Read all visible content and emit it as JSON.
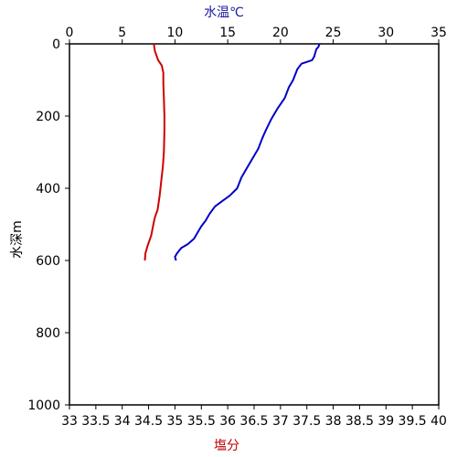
{
  "chart_data": {
    "type": "line",
    "top_axis": {
      "label": "水温℃",
      "ticks": [
        0,
        5,
        10,
        15,
        20,
        25,
        30,
        35
      ],
      "range": [
        0,
        35
      ],
      "label_color": "#1a1aa0"
    },
    "bottom_axis": {
      "label": "塩分",
      "ticks": [
        "33",
        "33.5",
        "34",
        "34.5",
        "35",
        "35.5",
        "36",
        "36.5",
        "37",
        "37.5",
        "38",
        "38.5",
        "39",
        "39.5",
        "40"
      ],
      "range": [
        33,
        40
      ],
      "label_color": "#c00000"
    },
    "left_axis": {
      "label": "水深m",
      "ticks": [
        0,
        200,
        400,
        600,
        800,
        1000
      ],
      "range": [
        0,
        1000
      ],
      "inverted": true
    },
    "grid": false,
    "series": [
      {
        "axis": "top",
        "color": "#0000c8",
        "points": [
          [
            23.7,
            0
          ],
          [
            23.6,
            8
          ],
          [
            23.4,
            15
          ],
          [
            23.3,
            25
          ],
          [
            23.2,
            35
          ],
          [
            23.0,
            45
          ],
          [
            22.0,
            55
          ],
          [
            21.6,
            70
          ],
          [
            21.4,
            85
          ],
          [
            21.2,
            100
          ],
          [
            20.8,
            120
          ],
          [
            20.4,
            150
          ],
          [
            19.7,
            180
          ],
          [
            19.1,
            210
          ],
          [
            18.6,
            240
          ],
          [
            18.3,
            260
          ],
          [
            17.9,
            290
          ],
          [
            17.3,
            320
          ],
          [
            16.8,
            345
          ],
          [
            16.3,
            370
          ],
          [
            15.9,
            400
          ],
          [
            15.2,
            420
          ],
          [
            14.5,
            435
          ],
          [
            13.8,
            450
          ],
          [
            13.3,
            470
          ],
          [
            12.9,
            490
          ],
          [
            12.5,
            505
          ],
          [
            12.2,
            520
          ],
          [
            11.8,
            540
          ],
          [
            11.2,
            555
          ],
          [
            10.6,
            565
          ],
          [
            10.2,
            580
          ],
          [
            10.0,
            590
          ],
          [
            10.1,
            600
          ]
        ]
      },
      {
        "axis": "bottom",
        "color": "#d00000",
        "points": [
          [
            34.6,
            0
          ],
          [
            34.62,
            20
          ],
          [
            34.68,
            45
          ],
          [
            34.75,
            60
          ],
          [
            34.78,
            80
          ],
          [
            34.78,
            110
          ],
          [
            34.79,
            150
          ],
          [
            34.8,
            200
          ],
          [
            34.8,
            240
          ],
          [
            34.79,
            300
          ],
          [
            34.77,
            340
          ],
          [
            34.74,
            380
          ],
          [
            34.71,
            420
          ],
          [
            34.67,
            460
          ],
          [
            34.62,
            480
          ],
          [
            34.59,
            500
          ],
          [
            34.55,
            530
          ],
          [
            34.48,
            560
          ],
          [
            34.44,
            580
          ],
          [
            34.43,
            600
          ]
        ]
      }
    ]
  }
}
